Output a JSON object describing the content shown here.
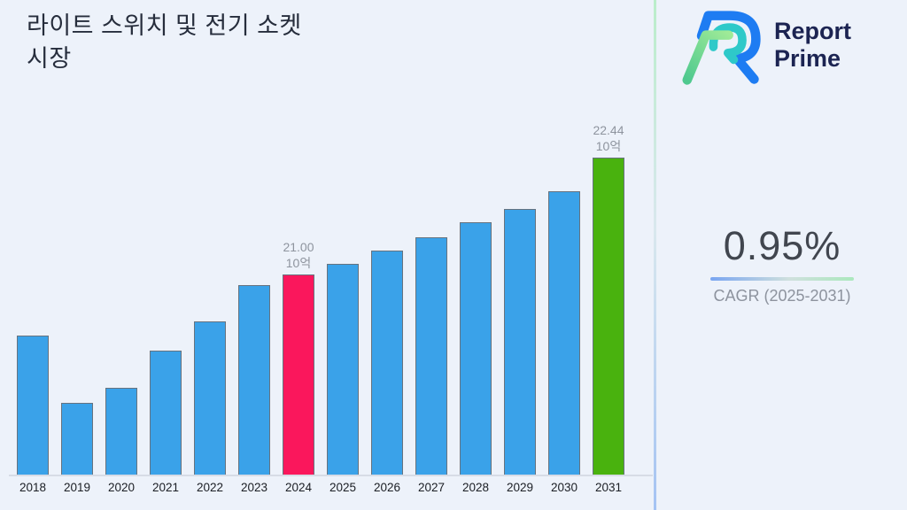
{
  "page": {
    "background": "#edf2fa"
  },
  "header": {
    "title_line1": "라이트 스위치 및 전기 소켓",
    "title_line2": "시장"
  },
  "brand": {
    "name_line1": "Report",
    "name_line2": "Prime",
    "logo_colors": {
      "outer": "#1e7cf2",
      "inner": "#2ec9c9",
      "stroke_green_light": "#a0eb97",
      "stroke_green_deep": "#4fc98f"
    }
  },
  "cagr_panel": {
    "value": "0.95%",
    "label": "CAGR (2025-2031)",
    "underline_left_color": "#79a5f1",
    "underline_right_color": "#abe8bd"
  },
  "divider_colors": {
    "top": "#baedca",
    "bottom": "#a4c3f3"
  },
  "chart_data": {
    "type": "bar",
    "title": "라이트 스위치 및 전기 소켓 시장",
    "unit": "10억",
    "categories": [
      "2018",
      "2019",
      "2020",
      "2021",
      "2022",
      "2023",
      "2024",
      "2025",
      "2026",
      "2027",
      "2028",
      "2029",
      "2030",
      "2031"
    ],
    "values": [
      20.25,
      19.42,
      19.61,
      20.07,
      20.42,
      20.87,
      21.0,
      21.13,
      21.3,
      21.46,
      21.65,
      21.81,
      22.03,
      22.44
    ],
    "bar_labels": {
      "6": {
        "value": "21.00",
        "unit": "10억"
      },
      "13": {
        "value": "22.44",
        "unit": "10억"
      }
    },
    "highlight_index": 6,
    "final_index": 13,
    "colors": {
      "default": "#3aa2e9",
      "highlight": "#fa175c",
      "final": "#49b20e",
      "border": "#67737f",
      "value_label": "#8e949e"
    },
    "ylim": [
      18.54,
      22.44
    ],
    "xlabel": "",
    "ylabel": "",
    "grid": false,
    "legend": false
  }
}
